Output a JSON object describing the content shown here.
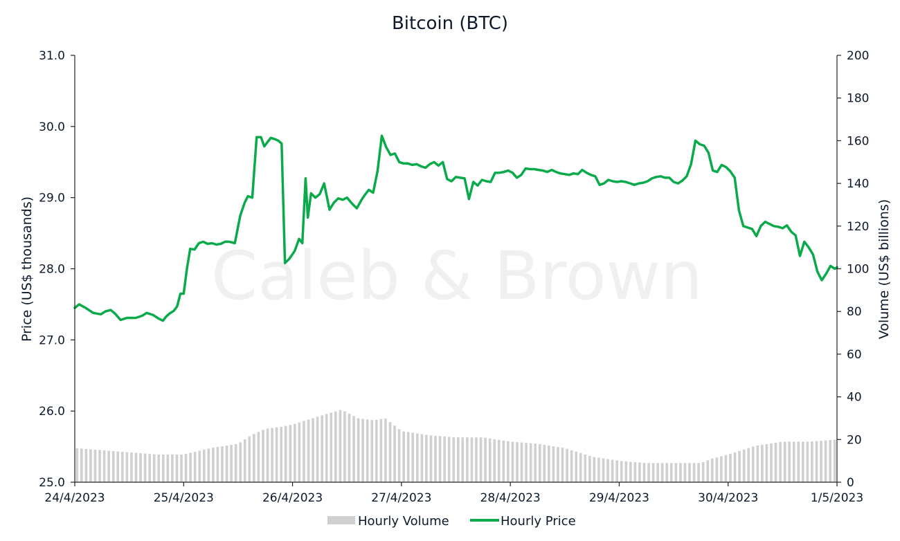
{
  "chart_data": {
    "type": "line",
    "title": "Bitcoin (BTC)",
    "watermark": "Caleb & Brown",
    "x_tick_labels": [
      "24/4/2023",
      "25/4/2023",
      "26/4/2023",
      "27/4/2023",
      "28/4/2023",
      "29/4/2023",
      "30/4/2023",
      "1/5/2023"
    ],
    "y_left": {
      "label": "Price (US$ thousands)",
      "range": [
        25.0,
        31.0
      ],
      "ticks": [
        "25.0",
        "26.0",
        "27.0",
        "28.0",
        "29.0",
        "30.0",
        "31.0"
      ]
    },
    "y_right": {
      "label": "Volume (US$ billions)",
      "range": [
        0,
        200
      ],
      "ticks": [
        "0",
        "20",
        "40",
        "60",
        "80",
        "100",
        "120",
        "140",
        "160",
        "180",
        "200"
      ]
    },
    "legend": {
      "position": "bottom",
      "entries": [
        "Hourly Volume",
        "Hourly Price"
      ]
    },
    "colors": {
      "price": "#0aaa4a",
      "volume": "#d0d0d0"
    },
    "series": [
      {
        "name": "Hourly Price",
        "axis": "left",
        "days": [
          0,
          0.04,
          0.1,
          0.17,
          0.24,
          0.28,
          0.33,
          0.37,
          0.42,
          0.48,
          0.56,
          0.62,
          0.66,
          0.72,
          0.77,
          0.81,
          0.84,
          0.87,
          0.91,
          0.94,
          0.97,
          1.0,
          1.03,
          1.06,
          1.1,
          1.14,
          1.18,
          1.22,
          1.26,
          1.3,
          1.34,
          1.38,
          1.42,
          1.47,
          1.52,
          1.56,
          1.59,
          1.63,
          1.67,
          1.71,
          1.74,
          1.8,
          1.84,
          1.87,
          1.9,
          1.93,
          1.97,
          2.02,
          2.06,
          2.09,
          2.12,
          2.14,
          2.17,
          2.21,
          2.25,
          2.29,
          2.34,
          2.38,
          2.42,
          2.46,
          2.5,
          2.55,
          2.59,
          2.63,
          2.66,
          2.7,
          2.74,
          2.78,
          2.82,
          2.86,
          2.9,
          2.94,
          2.98,
          3.02,
          3.06,
          3.1,
          3.14,
          3.18,
          3.22,
          3.26,
          3.3,
          3.34,
          3.38,
          3.42,
          3.46,
          3.5,
          3.54,
          3.58,
          3.62,
          3.66,
          3.7,
          3.74,
          3.78,
          3.82,
          3.86,
          3.9,
          3.94,
          3.98,
          4.02,
          4.06,
          4.1,
          4.14,
          4.18,
          4.22,
          4.26,
          4.3,
          4.34,
          4.38,
          4.42,
          4.46,
          4.5,
          4.54,
          4.58,
          4.62,
          4.66,
          4.7,
          4.74,
          4.78,
          4.82,
          4.86,
          4.9,
          4.94,
          4.98,
          5.02,
          5.06,
          5.1,
          5.14,
          5.18,
          5.22,
          5.26,
          5.3,
          5.34,
          5.38,
          5.42,
          5.46,
          5.5,
          5.54,
          5.58,
          5.62,
          5.66,
          5.7,
          5.74,
          5.78,
          5.82,
          5.86,
          5.9,
          5.94,
          5.98,
          6.02,
          6.06,
          6.1,
          6.14,
          6.18,
          6.22,
          6.26,
          6.3,
          6.34,
          6.38,
          6.42,
          6.46,
          6.5,
          6.54,
          6.58,
          6.62,
          6.66,
          6.7,
          6.74,
          6.78,
          6.82,
          6.86,
          6.9,
          6.94,
          6.98,
          7.0
        ],
        "values": [
          27.45,
          27.5,
          27.45,
          27.38,
          27.36,
          27.4,
          27.42,
          27.37,
          27.28,
          27.31,
          27.31,
          27.34,
          27.38,
          27.35,
          27.3,
          27.27,
          27.33,
          27.37,
          27.41,
          27.47,
          27.65,
          27.65,
          28.0,
          28.28,
          28.27,
          28.36,
          28.38,
          28.35,
          28.36,
          28.34,
          28.35,
          28.38,
          28.38,
          28.36,
          28.75,
          28.93,
          29.02,
          29.0,
          29.85,
          29.85,
          29.72,
          29.84,
          29.82,
          29.8,
          29.76,
          28.08,
          28.14,
          28.25,
          28.42,
          28.36,
          29.27,
          28.72,
          29.06,
          29.0,
          29.05,
          29.2,
          28.83,
          28.93,
          28.99,
          28.97,
          29.0,
          28.91,
          28.85,
          28.96,
          29.03,
          29.11,
          29.07,
          29.37,
          29.87,
          29.71,
          29.6,
          29.62,
          29.5,
          29.48,
          29.48,
          29.46,
          29.47,
          29.44,
          29.42,
          29.47,
          29.5,
          29.45,
          29.5,
          29.26,
          29.23,
          29.29,
          29.28,
          29.27,
          28.98,
          29.22,
          29.17,
          29.25,
          29.23,
          29.22,
          29.35,
          29.35,
          29.36,
          29.38,
          29.35,
          29.28,
          29.32,
          29.41,
          29.4,
          29.4,
          29.39,
          29.38,
          29.36,
          29.39,
          29.36,
          29.34,
          29.33,
          29.32,
          29.34,
          29.33,
          29.39,
          29.35,
          29.32,
          29.3,
          29.18,
          29.2,
          29.25,
          29.23,
          29.22,
          29.23,
          29.22,
          29.2,
          29.18,
          29.2,
          29.21,
          29.23,
          29.27,
          29.29,
          29.3,
          29.28,
          29.28,
          29.22,
          29.2,
          29.24,
          29.3,
          29.47,
          29.8,
          29.75,
          29.73,
          29.63,
          29.38,
          29.36,
          29.46,
          29.43,
          29.37,
          29.28,
          28.82,
          28.6,
          28.58,
          28.56,
          28.46,
          28.6,
          28.66,
          28.63,
          28.6,
          28.59,
          28.57,
          28.61,
          28.52,
          28.47,
          28.18,
          28.38,
          28.3,
          28.2,
          27.96,
          27.84,
          27.93,
          28.04,
          28.0,
          28.02
        ]
      },
      {
        "name": "Hourly Volume",
        "axis": "right",
        "days": [
          0,
          0.25,
          0.5,
          0.75,
          1.0,
          1.25,
          1.5,
          1.62,
          1.75,
          1.9,
          2.0,
          2.25,
          2.45,
          2.6,
          2.75,
          2.85,
          3.0,
          3.25,
          3.5,
          3.75,
          4.0,
          4.25,
          4.5,
          4.75,
          5.0,
          5.25,
          5.5,
          5.75,
          5.85,
          6.0,
          6.25,
          6.5,
          6.75,
          7.0
        ],
        "values": [
          16,
          15,
          14,
          13,
          13,
          16,
          18,
          22,
          25,
          26,
          27,
          31,
          34,
          30,
          29,
          30,
          24,
          22,
          21,
          21,
          19,
          18,
          16,
          12,
          10,
          9,
          9,
          9,
          11,
          13,
          17,
          19,
          19,
          20
        ]
      }
    ]
  }
}
